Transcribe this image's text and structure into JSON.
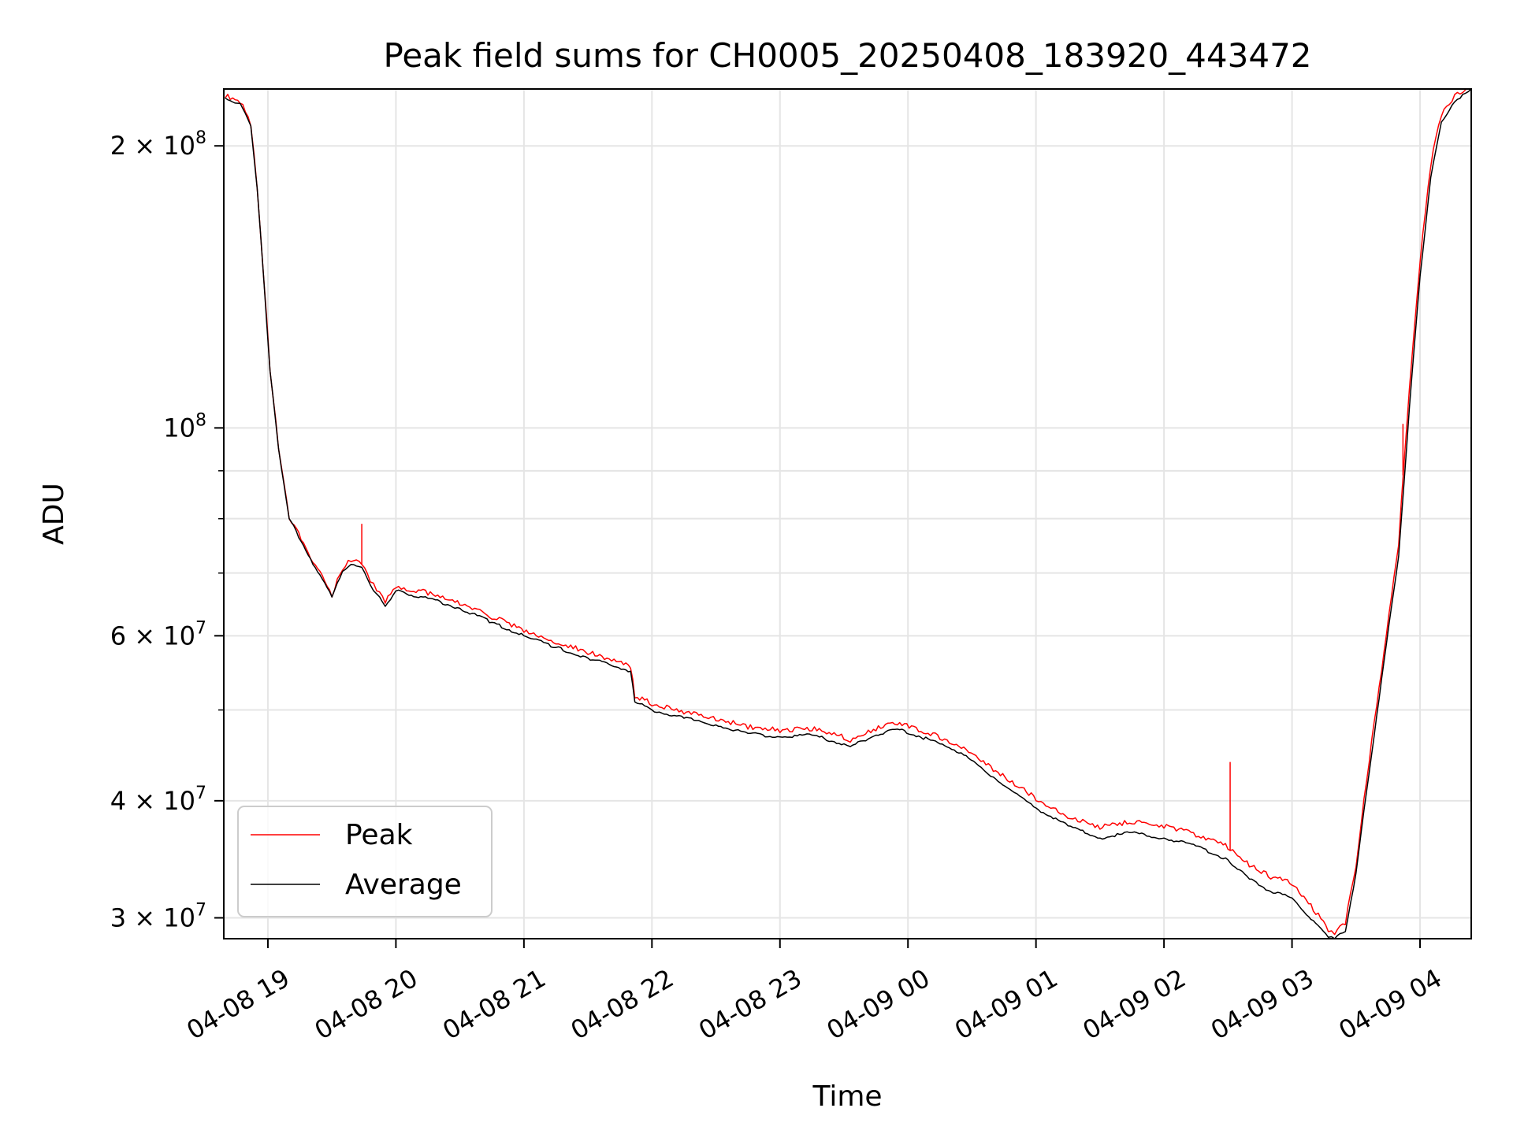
{
  "chart_data": {
    "type": "line",
    "title": "Peak field sums for CH0005_20250408_183920_443472",
    "xlabel": "Time",
    "ylabel": "ADU",
    "y_scale": "log",
    "ylim": [
      28500000,
      230000000
    ],
    "xlim": [
      "2025-04-08T18:39:20",
      "2025-04-09T04:24:00"
    ],
    "grid": true,
    "legend_position": "lower-left",
    "x_ticks": [
      {
        "value": "2025-04-08T19:00",
        "label": "04-08 19"
      },
      {
        "value": "2025-04-08T20:00",
        "label": "04-08 20"
      },
      {
        "value": "2025-04-08T21:00",
        "label": "04-08 21"
      },
      {
        "value": "2025-04-08T22:00",
        "label": "04-08 22"
      },
      {
        "value": "2025-04-08T23:00",
        "label": "04-08 23"
      },
      {
        "value": "2025-04-09T00:00",
        "label": "04-09 00"
      },
      {
        "value": "2025-04-09T01:00",
        "label": "04-09 01"
      },
      {
        "value": "2025-04-09T02:00",
        "label": "04-09 02"
      },
      {
        "value": "2025-04-09T03:00",
        "label": "04-09 03"
      },
      {
        "value": "2025-04-09T04:00",
        "label": "04-09 04"
      }
    ],
    "y_ticks": [
      {
        "value": 200000000,
        "mant": "2 × 10",
        "exp": "8"
      },
      {
        "value": 100000000,
        "mant": "10",
        "exp": "8"
      },
      {
        "value": 60000000,
        "mant": "6 × 10",
        "exp": "7"
      },
      {
        "value": 40000000,
        "mant": "4 × 10",
        "exp": "7"
      },
      {
        "value": 30000000,
        "mant": "3 × 10",
        "exp": "7"
      }
    ],
    "y_minor_ticks": [
      90000000,
      80000000,
      70000000,
      50000000
    ],
    "series": [
      {
        "name": "Peak",
        "color": "#ff0000",
        "x": [
          "2025-04-08T18:40",
          "2025-04-08T18:47",
          "2025-04-08T18:52",
          "2025-04-08T18:55",
          "2025-04-08T18:58",
          "2025-04-08T19:01",
          "2025-04-08T19:05",
          "2025-04-08T19:10",
          "2025-04-08T19:20",
          "2025-04-08T19:30",
          "2025-04-08T19:35",
          "2025-04-08T19:39",
          "2025-04-08T19:44",
          "2025-04-08T19:48",
          "2025-04-08T19:51",
          "2025-04-08T19:55",
          "2025-04-08T20:00",
          "2025-04-08T20:05",
          "2025-04-08T20:15",
          "2025-04-08T20:30",
          "2025-04-08T20:45",
          "2025-04-08T21:00",
          "2025-04-08T21:15",
          "2025-04-08T21:30",
          "2025-04-08T21:50",
          "2025-04-08T21:52",
          "2025-04-08T22:00",
          "2025-04-08T22:15",
          "2025-04-08T22:30",
          "2025-04-08T22:45",
          "2025-04-08T23:00",
          "2025-04-08T23:15",
          "2025-04-08T23:30",
          "2025-04-08T23:33",
          "2025-04-08T23:45",
          "2025-04-08T23:55",
          "2025-04-09T00:05",
          "2025-04-09T00:15",
          "2025-04-09T00:25",
          "2025-04-09T00:40",
          "2025-04-09T00:50",
          "2025-04-09T01:00",
          "2025-04-09T01:15",
          "2025-04-09T01:30",
          "2025-04-09T01:45",
          "2025-04-09T02:00",
          "2025-04-09T02:15",
          "2025-04-09T02:30",
          "2025-04-09T02:40",
          "2025-04-09T02:50",
          "2025-04-09T03:00",
          "2025-04-09T03:10",
          "2025-04-09T03:17",
          "2025-04-09T03:20",
          "2025-04-09T03:25",
          "2025-04-09T03:30",
          "2025-04-09T03:35",
          "2025-04-09T03:42",
          "2025-04-09T03:50",
          "2025-04-09T03:55",
          "2025-04-09T04:00",
          "2025-04-09T04:05",
          "2025-04-09T04:10",
          "2025-04-09T04:15",
          "2025-04-09T04:20",
          "2025-04-09T04:24"
        ],
        "y": [
          225000000,
          222000000,
          210000000,
          180000000,
          145000000,
          115000000,
          95000000,
          80000000,
          72500000,
          66000000,
          70500000,
          72000000,
          71500000,
          68500000,
          67000000,
          65000000,
          67500000,
          67000000,
          66300000,
          64700000,
          62500000,
          60500000,
          58800000,
          57300000,
          55400000,
          51500000,
          50500000,
          49500000,
          48700000,
          47700000,
          47300000,
          47500000,
          46500000,
          46200000,
          47500000,
          48200000,
          47400000,
          46500000,
          45500000,
          43000000,
          41500000,
          40000000,
          38300000,
          37300000,
          37800000,
          37400000,
          36600000,
          35500000,
          34000000,
          33000000,
          32500000,
          30500000,
          29000000,
          28800000,
          29500000,
          34000000,
          42000000,
          55000000,
          75000000,
          110000000,
          150000000,
          190000000,
          215000000,
          223000000,
          228000000,
          230000000
        ],
        "spikes": [
          {
            "x": "2025-04-08T19:44",
            "y": 79000000
          },
          {
            "x": "2025-04-09T02:31",
            "y": 44000000
          },
          {
            "x": "2025-04-09T03:52",
            "y": 101000000
          }
        ]
      },
      {
        "name": "Average",
        "color": "#000000",
        "x": [
          "2025-04-08T18:40",
          "2025-04-08T18:47",
          "2025-04-08T18:52",
          "2025-04-08T18:55",
          "2025-04-08T18:58",
          "2025-04-08T19:01",
          "2025-04-08T19:05",
          "2025-04-08T19:10",
          "2025-04-08T19:20",
          "2025-04-08T19:30",
          "2025-04-08T19:35",
          "2025-04-08T19:39",
          "2025-04-08T19:44",
          "2025-04-08T19:48",
          "2025-04-08T19:51",
          "2025-04-08T19:55",
          "2025-04-08T20:00",
          "2025-04-08T20:05",
          "2025-04-08T20:15",
          "2025-04-08T20:30",
          "2025-04-08T20:45",
          "2025-04-08T21:00",
          "2025-04-08T21:15",
          "2025-04-08T21:30",
          "2025-04-08T21:50",
          "2025-04-08T21:52",
          "2025-04-08T22:00",
          "2025-04-08T22:15",
          "2025-04-08T22:30",
          "2025-04-08T22:45",
          "2025-04-08T23:00",
          "2025-04-08T23:15",
          "2025-04-08T23:30",
          "2025-04-08T23:33",
          "2025-04-08T23:45",
          "2025-04-08T23:55",
          "2025-04-09T00:05",
          "2025-04-09T00:15",
          "2025-04-09T00:25",
          "2025-04-09T00:40",
          "2025-04-09T00:50",
          "2025-04-09T01:00",
          "2025-04-09T01:15",
          "2025-04-09T01:30",
          "2025-04-09T01:45",
          "2025-04-09T02:00",
          "2025-04-09T02:15",
          "2025-04-09T02:30",
          "2025-04-09T02:40",
          "2025-04-09T02:50",
          "2025-04-09T03:00",
          "2025-04-09T03:10",
          "2025-04-09T03:17",
          "2025-04-09T03:20",
          "2025-04-09T03:25",
          "2025-04-09T03:30",
          "2025-04-09T03:35",
          "2025-04-09T03:42",
          "2025-04-09T03:50",
          "2025-04-09T03:55",
          "2025-04-09T04:00",
          "2025-04-09T04:05",
          "2025-04-09T04:10",
          "2025-04-09T04:15",
          "2025-04-09T04:20",
          "2025-04-09T04:24"
        ],
        "y": [
          225000000,
          222000000,
          210000000,
          180000000,
          145000000,
          115000000,
          95000000,
          80000000,
          72500000,
          66000000,
          70300000,
          71500000,
          71000000,
          68000000,
          66500000,
          64500000,
          67000000,
          66500000,
          65800000,
          64200000,
          62000000,
          60000000,
          58300000,
          56800000,
          55000000,
          51000000,
          50000000,
          49000000,
          48200000,
          47200000,
          46800000,
          47000000,
          46000000,
          45700000,
          47000000,
          47700000,
          46900000,
          46000000,
          45000000,
          42400000,
          40800000,
          39300000,
          37600000,
          36500000,
          37000000,
          36500000,
          35800000,
          34600000,
          33000000,
          32000000,
          31500000,
          29800000,
          28600000,
          28500000,
          29000000,
          33500000,
          41000000,
          54000000,
          73000000,
          105000000,
          145000000,
          185000000,
          212000000,
          221000000,
          227000000,
          230000000
        ]
      }
    ]
  }
}
